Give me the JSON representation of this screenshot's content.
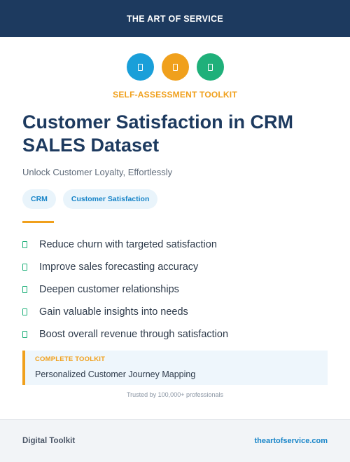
{
  "header": {
    "title": "THE ART OF SERVICE"
  },
  "icons": [
    {
      "name": "document-icon",
      "color": "#1a9fd9"
    },
    {
      "name": "document-icon",
      "color": "#f0a01c"
    },
    {
      "name": "document-icon",
      "color": "#1fb07a"
    }
  ],
  "hero": {
    "eyebrow": "SELF-ASSESSMENT TOOLKIT",
    "title_line1": "Customer Satisfaction in CRM",
    "title_line2": "SALES Dataset",
    "subtitle": "Unlock Customer Loyalty, Effortlessly"
  },
  "tags": [
    "CRM",
    "Customer Satisfaction"
  ],
  "benefits": [
    "Reduce churn with targeted satisfaction",
    "Improve sales forecasting accuracy",
    "Deepen customer relationships",
    "Gain valuable insights into needs",
    "Boost overall revenue through satisfaction"
  ],
  "toolkit": {
    "label": "COMPLETE TOOLKIT",
    "value": "Personalized Customer Journey Mapping"
  },
  "trusted": "Trusted by 100,000+ professionals",
  "footer": {
    "left": "Digital Toolkit",
    "right": "theartofservice.com"
  }
}
